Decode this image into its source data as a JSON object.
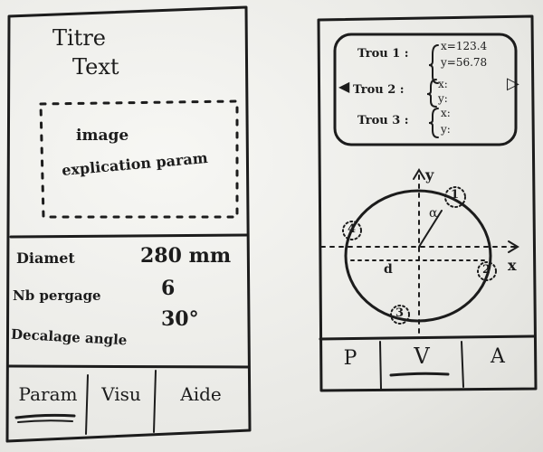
{
  "left_screen": {
    "title_line1": "Titre",
    "title_line2": "Text",
    "image_line1": "image",
    "image_line2": "explication param",
    "rows": [
      {
        "label": "Diamet",
        "value": "280 mm"
      },
      {
        "label": "Nb pergage",
        "value": "6"
      },
      {
        "label": "Decalage angle",
        "value": "30°"
      }
    ],
    "tabs": [
      "Param",
      "Visu",
      "Aide"
    ]
  },
  "right_screen": {
    "holes": [
      {
        "label": "Trou 1 :",
        "x": "x=123.4",
        "y": "y=56.78"
      },
      {
        "label": "Trou 2 :",
        "x": "x:",
        "y": "y:"
      },
      {
        "label": "Trou 3 :",
        "x": "x:",
        "y": "y:"
      }
    ],
    "arrow_left": "◀",
    "arrow_right": "▷",
    "axis_x": "x",
    "axis_y": "y",
    "angle_label": "α",
    "diameter_label": "d",
    "point_labels": [
      "1",
      "2",
      "3",
      "4"
    ],
    "tabs": [
      "P",
      "V",
      "A"
    ]
  }
}
